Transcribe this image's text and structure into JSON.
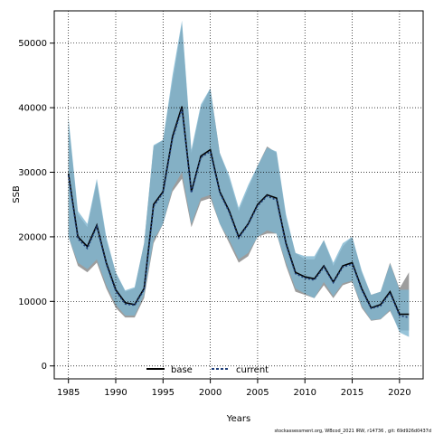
{
  "chart_data": {
    "type": "line",
    "xlabel": "Years",
    "ylabel": "SSB",
    "xlim": [
      1983.5,
      2022.5
    ],
    "ylim": [
      -2000,
      55000
    ],
    "xticks": [
      1985,
      1990,
      1995,
      2000,
      2005,
      2010,
      2015,
      2020
    ],
    "yticks": [
      0,
      10000,
      20000,
      30000,
      40000,
      50000
    ],
    "grid": true,
    "legend_position": "bottom-center",
    "x": [
      1985,
      1986,
      1987,
      1988,
      1989,
      1990,
      1991,
      1992,
      1993,
      1994,
      1995,
      1996,
      1997,
      1998,
      1999,
      2000,
      2001,
      2002,
      2003,
      2004,
      2005,
      2006,
      2007,
      2008,
      2009,
      2010,
      2011,
      2012,
      2013,
      2014,
      2015,
      2016,
      2017,
      2018,
      2019,
      2020,
      2021
    ],
    "series": [
      {
        "name": "base",
        "color": "#000000",
        "band_color": "#8c8c8c",
        "values": [
          29800,
          20000,
          18500,
          21800,
          16000,
          11800,
          9800,
          9500,
          12000,
          25000,
          27000,
          35500,
          40200,
          27000,
          32500,
          33500,
          27000,
          24000,
          20000,
          22000,
          25000,
          26500,
          26000,
          19000,
          14500,
          13800,
          13500,
          15500,
          13000,
          15500,
          16000,
          12000,
          9000,
          9500,
          11500,
          8000,
          8000
        ],
        "lower": [
          20000,
          15500,
          14500,
          16000,
          12000,
          9000,
          7500,
          7500,
          10500,
          19000,
          22000,
          27000,
          29000,
          21500,
          25500,
          26000,
          22000,
          19000,
          16000,
          17000,
          20000,
          20500,
          20500,
          15500,
          11500,
          11000,
          10500,
          12500,
          10500,
          12500,
          13000,
          9000,
          7000,
          7200,
          8500,
          5500,
          5500
        ],
        "upper": [
          38000,
          23500,
          21500,
          28500,
          19500,
          14500,
          11500,
          12000,
          19000,
          34000,
          35000,
          44000,
          53000,
          33000,
          40000,
          43000,
          33000,
          29000,
          24000,
          27500,
          31000,
          34000,
          33000,
          23000,
          17500,
          16500,
          16500,
          19500,
          15500,
          18500,
          20000,
          14500,
          11000,
          11500,
          16000,
          12000,
          14500
        ]
      },
      {
        "name": "current",
        "color": "#1f3f7a",
        "band_color": "#7eb5d0",
        "values": [
          29500,
          19700,
          18200,
          21600,
          15800,
          11600,
          9600,
          9400,
          11800,
          24700,
          26800,
          35200,
          39800,
          26800,
          32300,
          33200,
          26800,
          23800,
          19800,
          21900,
          24800,
          26300,
          25700,
          18800,
          14300,
          13600,
          13300,
          15300,
          12900,
          15300,
          15800,
          11800,
          8900,
          9300,
          11300,
          7800,
          7500
        ],
        "lower": [
          20000,
          16000,
          15000,
          16500,
          12500,
          9500,
          7800,
          7800,
          11000,
          19500,
          22000,
          27500,
          30000,
          22000,
          26000,
          26500,
          22000,
          19500,
          16500,
          17500,
          20000,
          21000,
          20500,
          16000,
          12000,
          11200,
          10500,
          13000,
          10800,
          12800,
          13200,
          9300,
          7100,
          7300,
          8700,
          5200,
          4500
        ],
        "upper": [
          38500,
          24000,
          22000,
          29000,
          20000,
          14500,
          11700,
          12200,
          19000,
          34200,
          35000,
          45000,
          53500,
          33500,
          40500,
          43000,
          33000,
          29500,
          24500,
          28000,
          31000,
          33800,
          33200,
          23500,
          17500,
          17000,
          17000,
          19500,
          16000,
          19000,
          20000,
          14800,
          11000,
          11500,
          15800,
          11800,
          11800
        ]
      }
    ],
    "credit": "stockassessment.org, WBcod_2021 IRW, r14736 , git: 69d926d0437d"
  }
}
